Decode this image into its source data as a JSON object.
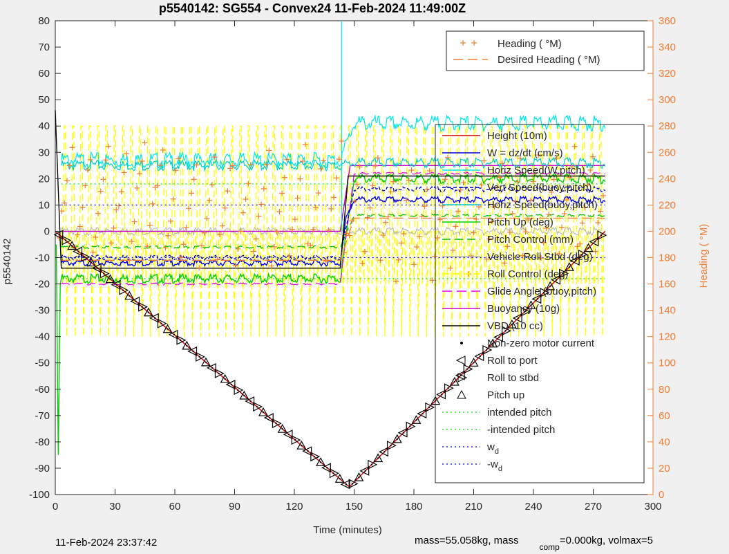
{
  "chart_data": {
    "type": "line",
    "title": "p5540142: SG554 - Convex24 11-Feb-2024 11:49:00Z",
    "xlabel": "Time (minutes)",
    "ylabel": "p5540142",
    "ylabel_right": "Heading (  °M)",
    "xlim": [
      0,
      300
    ],
    "ylim": [
      -100,
      80
    ],
    "ylim_right": [
      0,
      360
    ],
    "x_ticks": [
      "0",
      "30",
      "60",
      "90",
      "120",
      "150",
      "180",
      "210",
      "240",
      "270",
      "300"
    ],
    "y_ticks": [
      "-100",
      "-90",
      "-80",
      "-70",
      "-60",
      "-50",
      "-40",
      "-30",
      "-20",
      "-10",
      "0",
      "10",
      "20",
      "30",
      "40",
      "50",
      "60",
      "70",
      "80"
    ],
    "y_ticks_right": [
      "0",
      "20",
      "40",
      "60",
      "80",
      "100",
      "120",
      "140",
      "160",
      "180",
      "200",
      "220",
      "240",
      "260",
      "280",
      "300",
      "320",
      "340",
      "360"
    ],
    "colors": {
      "height": "#d40000",
      "w": "#0000e6",
      "horiz_w": "#00e6e6",
      "vert_buoy": "#0000b4",
      "horiz_buoy": "#00cccc",
      "pitch": "#00d000",
      "pitch_control": "#00c000",
      "roll": "#b4b4b4",
      "roll_control": "#ffff00",
      "glide": "#e600e6",
      "buoyancy": "#cc00cc",
      "vbd": "#000000",
      "heading": "#f07d32",
      "right_axis": "#f07d32",
      "intended": "#00dd00",
      "wd": "#0000dd"
    },
    "series": [
      {
        "key": "height",
        "name": "Height (10m)",
        "x": [
          0,
          147,
          148,
          276
        ],
        "y": [
          0,
          -96.8,
          -96.8,
          0
        ]
      },
      {
        "key": "w",
        "name": "W = dz/dt (cm/s)",
        "x": [
          3,
          143,
          146,
          150,
          276
        ],
        "y": [
          -12,
          -12,
          5,
          12,
          12
        ]
      },
      {
        "key": "horiz_w",
        "name": "Horiz Speed(W,pitch)",
        "x": [
          3,
          143,
          150,
          276
        ],
        "y": [
          27,
          27,
          41,
          41
        ]
      },
      {
        "key": "vert_buoy",
        "name": "Vert Speed(buoy,pitch)",
        "x": [
          3,
          143,
          150,
          276
        ],
        "y": [
          -10,
          -10,
          16,
          16
        ]
      },
      {
        "key": "horiz_buoy",
        "name": "Horiz Speed(buoy,pitch)",
        "x": [
          3,
          143,
          150,
          276
        ],
        "y": [
          25,
          25,
          26,
          26
        ]
      },
      {
        "key": "pitch",
        "name": "Pitch Up (deg)",
        "x": [
          3,
          143,
          150,
          276
        ],
        "y": [
          -18,
          -18,
          20,
          20
        ]
      },
      {
        "key": "pitch_control",
        "name": "Pitch Control (mm)",
        "x": [
          3,
          143,
          150,
          276
        ],
        "y": [
          -6,
          -6,
          6,
          6
        ]
      },
      {
        "key": "roll",
        "name": "Vehicle Roll Stbd (deg)",
        "x": [
          3,
          276
        ],
        "y": [
          0,
          0
        ]
      },
      {
        "key": "roll_control",
        "name": "Roll Control (deg)",
        "x": [
          3,
          276
        ],
        "y": [
          -40,
          40
        ]
      },
      {
        "key": "glide",
        "name": "Glide Angle (buoy,pitch)",
        "x": [
          3,
          143,
          150,
          276
        ],
        "y": [
          -20,
          -20,
          22,
          22
        ]
      },
      {
        "key": "buoyancy",
        "name": "Buoyancy (10g)",
        "x": [
          3,
          143,
          148,
          276
        ],
        "y": [
          0,
          0,
          25,
          25
        ]
      },
      {
        "key": "vbd",
        "name": "VBD (10 cc)",
        "x": [
          0,
          3,
          143,
          147,
          276
        ],
        "y": [
          46,
          -14,
          -14,
          21,
          21
        ]
      },
      {
        "key": "heading",
        "name": "Heading (  °M)",
        "axis": "right",
        "x": [
          3,
          143,
          150,
          276
        ],
        "y": [
          240,
          240,
          230,
          240
        ]
      },
      {
        "key": "desired_heading",
        "name": "Desired Heading (  °M)",
        "axis": "right",
        "x": [
          3,
          143,
          150,
          276
        ],
        "y": [
          178,
          178,
          210,
          210
        ]
      }
    ],
    "legend_bottom": [
      {
        "key": "motor",
        "name": "Non-zero motor current"
      },
      {
        "key": "roll_port",
        "name": "Roll to port"
      },
      {
        "key": "roll_stbd",
        "name": "Roll to stbd"
      },
      {
        "key": "pitch_up",
        "name": "Pitch up"
      },
      {
        "key": "intended",
        "name": "intended pitch"
      },
      {
        "key": "neg_intended",
        "name": "-intended pitch"
      },
      {
        "key": "wd",
        "name": "w",
        "sub": "d"
      },
      {
        "key": "neg_wd",
        "name": "-w",
        "sub": "d"
      }
    ],
    "legend_placement": "top-right"
  },
  "footer": {
    "left": "11-Feb-2024 23:37:42",
    "right_a": "mass=55.058kg, mass",
    "right_sub": "comp",
    "right_b": "=0.000kg, volmax=5"
  }
}
